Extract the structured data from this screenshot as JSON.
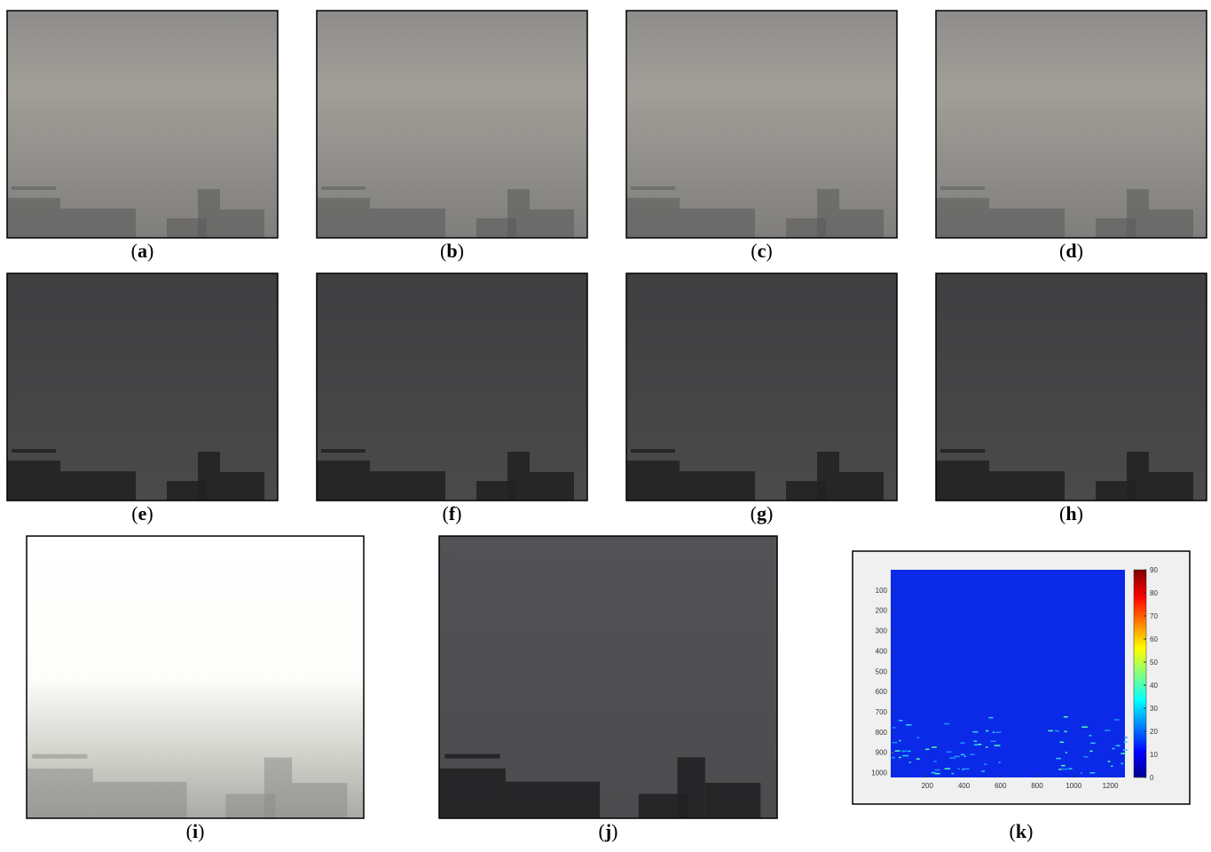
{
  "panels": [
    {
      "label": "(a)"
    },
    {
      "label": "(b)"
    },
    {
      "label": "(c)"
    },
    {
      "label": "(d)"
    },
    {
      "label": "(e)"
    },
    {
      "label": "(f)"
    },
    {
      "label": "(g)"
    },
    {
      "label": "(h)"
    },
    {
      "label": "(i)"
    },
    {
      "label": "(j)"
    },
    {
      "label": "(k)",
      "heatmap": {
        "xlim": [
          0,
          1280
        ],
        "ylim": [
          0,
          1024
        ],
        "xticks": [
          200,
          400,
          600,
          800,
          1000,
          1200
        ],
        "yticks": [
          100,
          200,
          300,
          400,
          500,
          600,
          700,
          800,
          900,
          1000
        ],
        "colorbar_lim": [
          0,
          90
        ],
        "colorbar_ticks": [
          0,
          10,
          20,
          30,
          40,
          50,
          60,
          70,
          80,
          90
        ]
      }
    }
  ]
}
